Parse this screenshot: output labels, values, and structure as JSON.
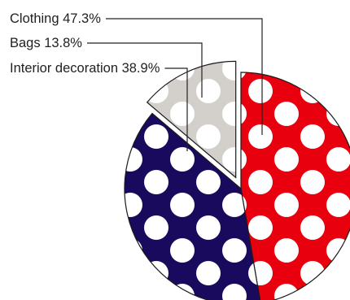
{
  "chart_data": {
    "type": "pie",
    "slices": [
      {
        "name": "Clothing",
        "value": 47.3,
        "label": "Clothing 47.3%",
        "color": "#e8000f"
      },
      {
        "name": "Bags",
        "value": 13.8,
        "label": "Bags 13.8%",
        "color": "#d3d0cc"
      },
      {
        "name": "Interior decoration",
        "value": 38.9,
        "label": "Interior decoration 38.9%",
        "color": "#1a0a5e"
      }
    ],
    "pattern": "white-polka-dots",
    "exploded_slice": "Bags",
    "legend": "left-leader-lines"
  }
}
